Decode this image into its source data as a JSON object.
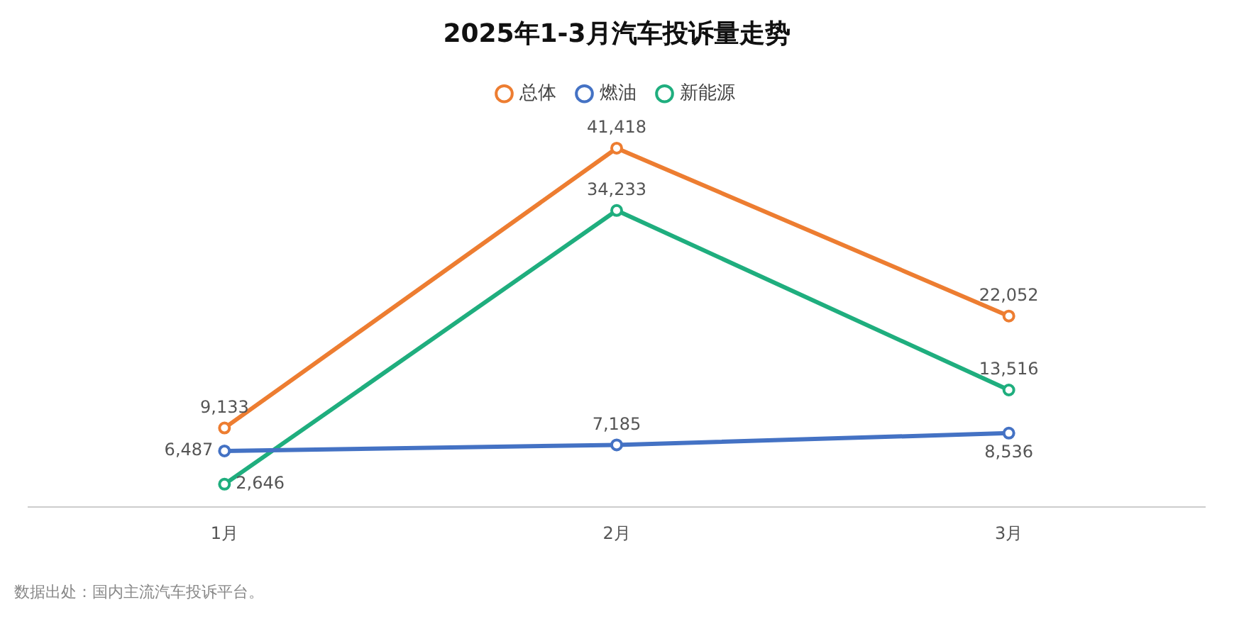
{
  "chart_data": {
    "type": "line",
    "title": "2025年1-3月汽车投诉量走势",
    "categories": [
      "1月",
      "2月",
      "3月"
    ],
    "series": [
      {
        "name": "总体",
        "color": "#ed7d31",
        "values": [
          9133,
          41418,
          22052
        ],
        "value_labels": [
          "9,133",
          "41,418",
          "22,052"
        ]
      },
      {
        "name": "燃油",
        "color": "#4472c4",
        "values": [
          6487,
          7185,
          8536
        ],
        "value_labels": [
          "6,487",
          "7,185",
          "8,536"
        ]
      },
      {
        "name": "新能源",
        "color": "#1fae7e",
        "values": [
          2646,
          34233,
          13516
        ],
        "value_labels": [
          "2,646",
          "34,233",
          "13,516"
        ]
      }
    ],
    "tick_labels": "x",
    "grid": false,
    "legend": "top",
    "marker": "circle",
    "line_style": "solid",
    "annotations": [
      "数据出处：国内主流汽车投诉平台。"
    ]
  }
}
